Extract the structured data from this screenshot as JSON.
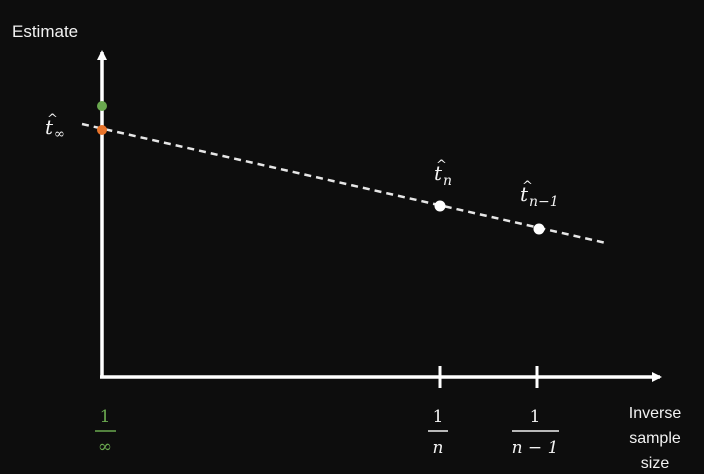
{
  "diagram": {
    "y_axis_label": "Estimate",
    "x_axis_label_lines": [
      "Inverse",
      "sample",
      "size"
    ],
    "intercept_label": {
      "symbol": "t",
      "subscript": "∞"
    },
    "points": [
      {
        "id": "t_n",
        "symbol": "t",
        "subscript": "n"
      },
      {
        "id": "t_n_minus_1",
        "symbol": "t",
        "subscript": "n−1"
      }
    ],
    "x_ticks": [
      {
        "id": "inf",
        "numerator": "1",
        "denominator": "∞",
        "color": "#6aa84f"
      },
      {
        "id": "n",
        "numerator": "1",
        "denominator": "n",
        "color": "#f2f2f2"
      },
      {
        "id": "n_minus_1",
        "numerator": "1",
        "denominator": "n − 1",
        "color": "#f2f2f2"
      }
    ],
    "colors": {
      "background": "#0d0d0d",
      "axes": "#ffffff",
      "trend_line": "#e6e6e6",
      "true_value_point": "#6aa84f",
      "extrapolated_point": "#e8742b",
      "sample_points": "#ffffff"
    }
  }
}
